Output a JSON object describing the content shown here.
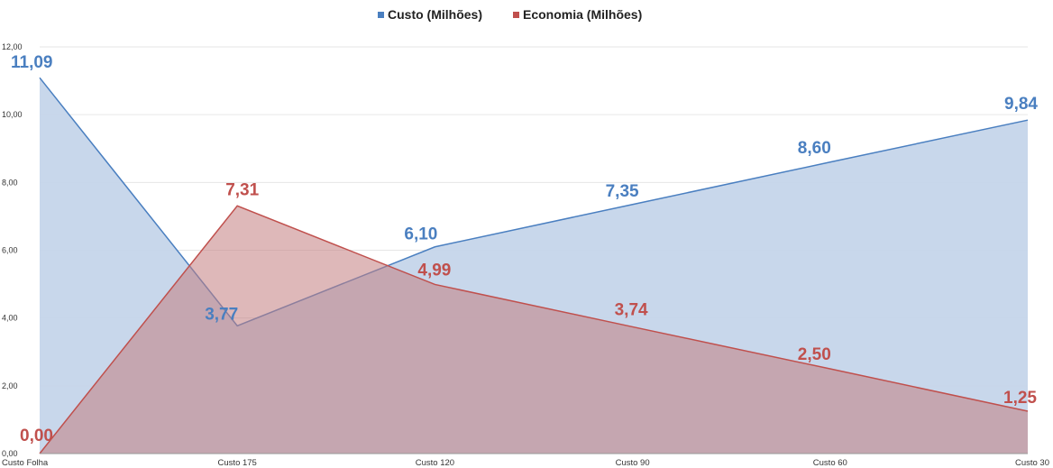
{
  "chart_data": {
    "type": "area",
    "categories": [
      "Custo Folha",
      "Custo 175",
      "Custo 120",
      "Custo 90",
      "Custo 60",
      "Custo 30"
    ],
    "series": [
      {
        "name": "Custo (Milhões)",
        "values": [
          11.09,
          3.77,
          6.1,
          7.35,
          8.6,
          9.84
        ],
        "labels": [
          "11,09",
          "3,77",
          "6,10",
          "7,35",
          "8,60",
          "9,84"
        ],
        "color": "#4a7fc0",
        "fill": "#c5d5ea"
      },
      {
        "name": "Economia (Milhões)",
        "values": [
          0.0,
          7.31,
          4.99,
          3.74,
          2.5,
          1.25
        ],
        "labels": [
          "0,00",
          "7,31",
          "4,99",
          "3,74",
          "2,50",
          "1,25"
        ],
        "color": "#c0504d",
        "fill": "#c27d80"
      }
    ],
    "ylim": [
      0,
      12
    ],
    "yticks": [
      "0,00",
      "2,00",
      "4,00",
      "6,00",
      "8,00",
      "10,00",
      "12,00"
    ],
    "grid": true,
    "legend_position": "top-center"
  }
}
